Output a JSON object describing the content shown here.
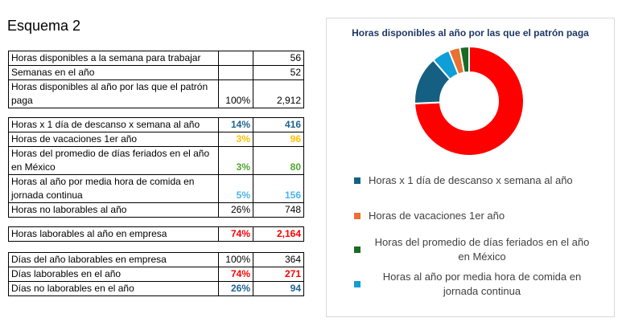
{
  "title": "Esquema 2",
  "t1": [
    {
      "label": "Horas disponibles a la semana para trabajar",
      "pct": "",
      "val": "56"
    },
    {
      "label": "Semanas en el año",
      "pct": "",
      "val": "52"
    },
    {
      "label": "Horas disponibles al año por las que el patrón paga",
      "pct": "100%",
      "val": "2,912"
    }
  ],
  "t2": [
    {
      "label": "Horas x 1 día de descanso x semana al año",
      "pct": "14%",
      "val": "416"
    },
    {
      "label": "Horas de vacaciones 1er año",
      "pct": "3%",
      "val": "96"
    },
    {
      "label": "Horas del promedio de días feriados en el año en México",
      "pct": "3%",
      "val": "80"
    },
    {
      "label": "Horas al año por media hora de comida en jornada continua",
      "pct": "5%",
      "val": "156"
    },
    {
      "label": "Horas no laborables al año",
      "pct": "26%",
      "val": "748"
    }
  ],
  "t3": [
    {
      "label": "Horas laborables al año en empresa",
      "pct": "74%",
      "val": "2,164"
    }
  ],
  "t4": [
    {
      "label": "Días del año laborables en empresa",
      "pct": "100%",
      "val": "364"
    },
    {
      "label": "Días laborables en el año",
      "pct": "74%",
      "val": "271"
    },
    {
      "label": "Días no laborables en el año",
      "pct": "26%",
      "val": "94"
    }
  ],
  "colors": {
    "blue": "#1f6391",
    "yellow": "#ffc000",
    "green": "#4ea72e",
    "lightblue": "#4cb4e7",
    "red": "#ff0000"
  },
  "chart_data": {
    "type": "pie",
    "title": "Horas disponibles al año por las que el patrón paga",
    "slices": [
      {
        "name": "Horas laborables al año en empresa",
        "value": 2164,
        "color": "#ff0000",
        "legend": false
      },
      {
        "name": "Horas x 1 día de descanso x semana al año",
        "value": 416,
        "color": "#156082",
        "legend": true
      },
      {
        "name": "Horas al año por media hora de comida en jornada continua",
        "value": 156,
        "color": "#0f9ed5",
        "legend": true
      },
      {
        "name": "Horas de vacaciones 1er año",
        "value": 96,
        "color": "#e97132",
        "legend": true
      },
      {
        "name": "Horas del promedio de días feriados en el año en México",
        "value": 80,
        "color": "#196b24",
        "legend": true
      }
    ],
    "legend_order": [
      {
        "label": "Horas x 1 día de descanso x semana al año",
        "color": "#156082"
      },
      {
        "label": "Horas de vacaciones 1er año",
        "color": "#e97132"
      },
      {
        "label": "Horas del promedio de días feriados en el año en México",
        "color": "#196b24"
      },
      {
        "label": "Horas al año por media hora de comida en jornada continua",
        "color": "#0f9ed5"
      }
    ]
  }
}
